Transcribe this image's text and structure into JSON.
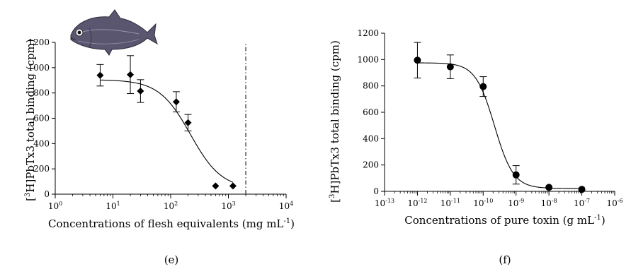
{
  "chart_data": [
    {
      "type": "scatter",
      "panel_label": "(e)",
      "xlabel": "Concentrations of flesh equivalents (mg mL",
      "xlabel_sup": "-1",
      "xlabel_end": ")",
      "ylabel_pre": "[",
      "ylabel_sup": "3",
      "ylabel_post": "H]PbTx3 total binding (cpm)",
      "x_scale": "log",
      "xlim": [
        1,
        10000
      ],
      "ylim": [
        0,
        1200
      ],
      "x_ticks": [
        {
          "value": 1,
          "base": "10",
          "exp": "0"
        },
        {
          "value": 10,
          "base": "10",
          "exp": "1"
        },
        {
          "value": 100,
          "base": "10",
          "exp": "2"
        },
        {
          "value": 1000,
          "base": "10",
          "exp": "3"
        },
        {
          "value": 10000,
          "base": "10",
          "exp": "4"
        }
      ],
      "y_ticks": [
        "0",
        "200",
        "400",
        "600",
        "800",
        "1000",
        "1200"
      ],
      "marker": "diamond",
      "points": [
        {
          "x": 6,
          "y": 940,
          "err": 85
        },
        {
          "x": 20,
          "y": 945,
          "err": 150
        },
        {
          "x": 30,
          "y": 815,
          "err": 90
        },
        {
          "x": 125,
          "y": 730,
          "err": 80
        },
        {
          "x": 200,
          "y": 565,
          "err": 65
        },
        {
          "x": 600,
          "y": 65,
          "err": 0
        },
        {
          "x": 1200,
          "y": 65,
          "err": 0
        }
      ],
      "fit": {
        "top": 905,
        "bottom": 40,
        "ec50": 220,
        "hill": 1.6
      },
      "vline_x": 2000,
      "image": "fish-illustration"
    },
    {
      "type": "scatter",
      "panel_label": "(f)",
      "xlabel": "Concentrations of pure toxin (g mL",
      "xlabel_sup": "-1",
      "xlabel_end": ")",
      "ylabel_pre": "[",
      "ylabel_sup": "3",
      "ylabel_post": "H]PbTx3 total binding (cpm)",
      "x_scale": "log",
      "xlim": [
        1e-13,
        1e-06
      ],
      "ylim": [
        0,
        1200
      ],
      "x_ticks": [
        {
          "value": 1e-13,
          "base": "10",
          "exp": "-13"
        },
        {
          "value": 1e-12,
          "base": "10",
          "exp": "-12"
        },
        {
          "value": 1e-11,
          "base": "10",
          "exp": "-11"
        },
        {
          "value": 1e-10,
          "base": "10",
          "exp": "-10"
        },
        {
          "value": 1e-09,
          "base": "10",
          "exp": "-9"
        },
        {
          "value": 1e-08,
          "base": "10",
          "exp": "-8"
        },
        {
          "value": 1e-07,
          "base": "10",
          "exp": "-7"
        },
        {
          "value": 1e-06,
          "base": "10",
          "exp": "-6"
        }
      ],
      "y_ticks": [
        "0",
        "200",
        "400",
        "600",
        "800",
        "1000",
        "1200"
      ],
      "marker": "circle",
      "points": [
        {
          "x": 1e-12,
          "y": 995,
          "err": 135
        },
        {
          "x": 1e-11,
          "y": 945,
          "err": 90
        },
        {
          "x": 1e-10,
          "y": 795,
          "err": 75
        },
        {
          "x": 1e-09,
          "y": 125,
          "err": 70
        },
        {
          "x": 1e-08,
          "y": 30,
          "err": 0
        },
        {
          "x": 1e-07,
          "y": 15,
          "err": 0
        }
      ],
      "fit": {
        "top": 975,
        "bottom": 22,
        "ec50": 2.2e-10,
        "hill": 1.5
      }
    }
  ]
}
